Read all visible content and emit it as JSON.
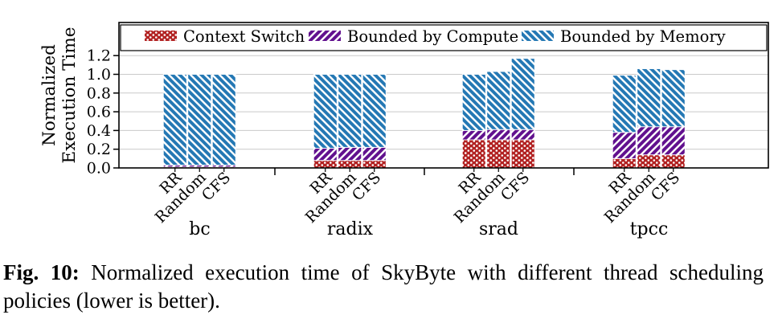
{
  "figure": {
    "caption_prefix": "Fig. 10:",
    "caption_text": "Normalized execution time of SkyByte with different thread scheduling policies (lower is better)."
  },
  "chart_data": {
    "type": "bar",
    "stacked": true,
    "title": "",
    "xlabel": "",
    "ylabel": "Normalized Execution Time",
    "ylabel_lines": [
      "Normalized",
      "Execution Time"
    ],
    "ylim": [
      0,
      1.3
    ],
    "yticks": [
      "0.0",
      "0.2",
      "0.4",
      "0.6",
      "0.8",
      "1.0",
      "1.2"
    ],
    "grid": true,
    "legend_position": "top-inside-expanded",
    "groups": [
      "bc",
      "radix",
      "srad",
      "tpcc"
    ],
    "bar_labels": [
      "RR",
      "Random",
      "CFS"
    ],
    "series": [
      {
        "name": "Context Switch",
        "color": "#b22222",
        "hatch": "dots",
        "values": [
          [
            0.01,
            0.01,
            0.01
          ],
          [
            0.08,
            0.08,
            0.08
          ],
          [
            0.3,
            0.3,
            0.3
          ],
          [
            0.1,
            0.14,
            0.14
          ]
        ]
      },
      {
        "name": "Bounded by Compute",
        "color": "#61108e",
        "hatch": "slash",
        "values": [
          [
            0.02,
            0.02,
            0.02
          ],
          [
            0.13,
            0.14,
            0.14
          ],
          [
            0.1,
            0.11,
            0.11
          ],
          [
            0.28,
            0.3,
            0.3
          ]
        ]
      },
      {
        "name": "Bounded by Memory",
        "color": "#2478b4",
        "hatch": "backslash",
        "values": [
          [
            0.97,
            0.97,
            0.97
          ],
          [
            0.79,
            0.78,
            0.78
          ],
          [
            0.6,
            0.62,
            0.76
          ],
          [
            0.61,
            0.62,
            0.61
          ]
        ]
      }
    ],
    "bar_totals": [
      [
        1.0,
        1.0,
        1.0
      ],
      [
        1.0,
        1.0,
        1.0
      ],
      [
        1.0,
        1.03,
        1.17
      ],
      [
        0.99,
        1.06,
        1.05
      ]
    ]
  }
}
